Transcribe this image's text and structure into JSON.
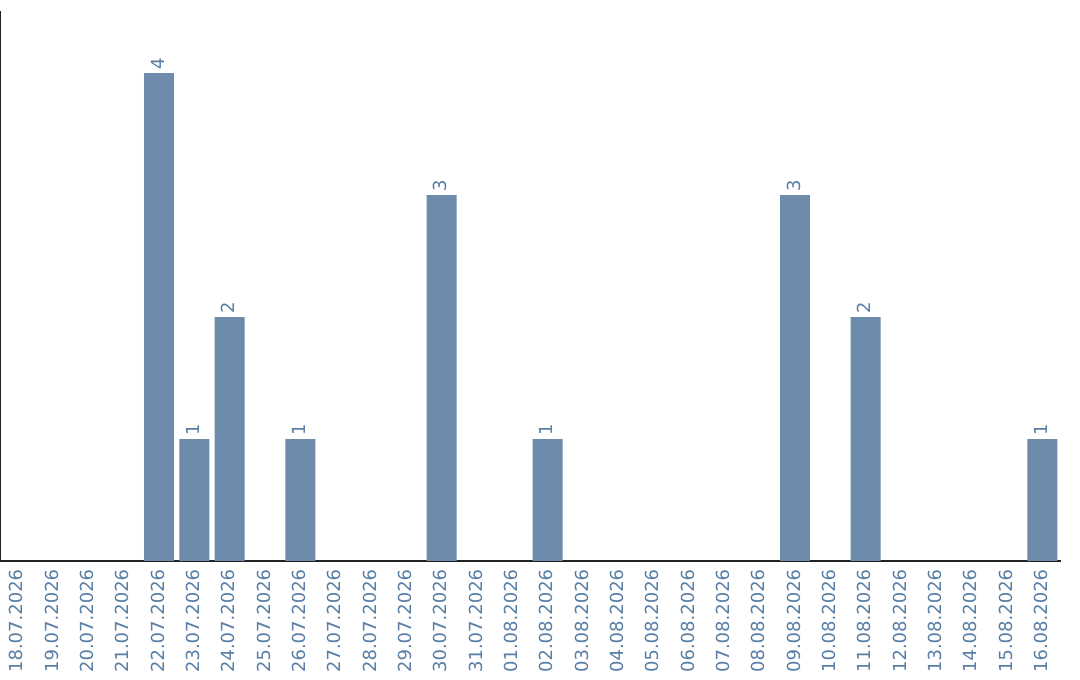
{
  "chart_data": {
    "type": "bar",
    "categories": [
      "18.07.2026",
      "19.07.2026",
      "20.07.2026",
      "21.07.2026",
      "22.07.2026",
      "23.07.2026",
      "24.07.2026",
      "25.07.2026",
      "26.07.2026",
      "27.07.2026",
      "28.07.2026",
      "29.07.2026",
      "30.07.2026",
      "31.07.2026",
      "01.08.2026",
      "02.08.2026",
      "03.08.2026",
      "04.08.2026",
      "05.08.2026",
      "06.08.2026",
      "07.08.2026",
      "08.08.2026",
      "09.08.2026",
      "10.08.2026",
      "11.08.2026",
      "12.08.2026",
      "13.08.2026",
      "14.08.2026",
      "15.08.2026",
      "16.08.2026"
    ],
    "values": [
      0,
      0,
      0,
      0,
      4,
      1,
      2,
      0,
      1,
      0,
      0,
      0,
      3,
      0,
      0,
      1,
      0,
      0,
      0,
      0,
      0,
      0,
      3,
      0,
      2,
      0,
      0,
      0,
      0,
      1
    ],
    "value_labels": [
      null,
      null,
      null,
      null,
      "4",
      "1",
      "2",
      null,
      "1",
      null,
      null,
      null,
      "3",
      null,
      null,
      "1",
      null,
      null,
      null,
      null,
      null,
      null,
      "3",
      null,
      "2",
      null,
      null,
      null,
      null,
      "1"
    ],
    "color": "#6d8bab",
    "grid": false,
    "legend": false
  }
}
